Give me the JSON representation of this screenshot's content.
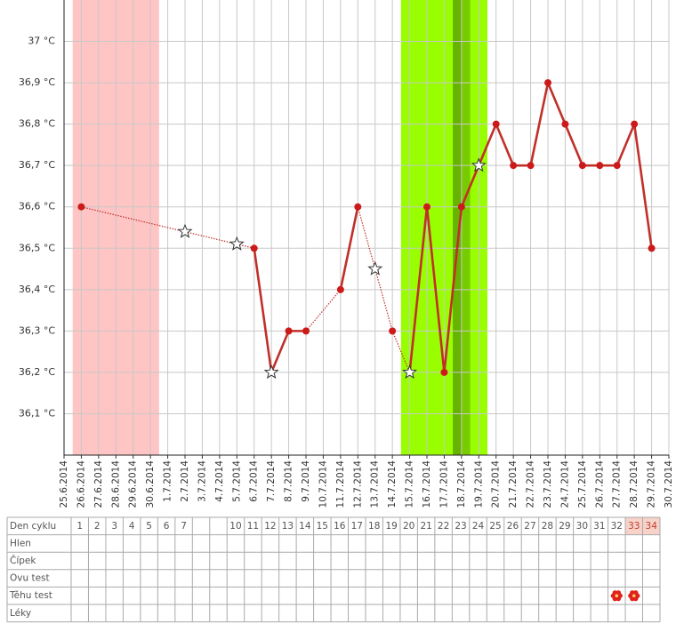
{
  "chart_data": {
    "type": "line",
    "categories": [
      "25.6.2014",
      "26.6.2014",
      "27.6.2014",
      "28.6.2014",
      "29.6.2014",
      "30.6.2014",
      "1.7.2014",
      "2.7.2014",
      "3.7.2014",
      "4.7.2014",
      "5.7.2014",
      "6.7.2014",
      "7.7.2014",
      "8.7.2014",
      "9.7.2014",
      "10.7.2014",
      "11.7.2014",
      "12.7.2014",
      "13.7.2014",
      "14.7.2014",
      "15.7.2014",
      "16.7.2014",
      "17.7.2014",
      "18.7.2014",
      "19.7.2014",
      "20.7.2014",
      "21.7.2014",
      "22.7.2014",
      "23.7.2014",
      "24.7.2014",
      "25.7.2014",
      "26.7.2014",
      "27.7.2014",
      "28.7.2014",
      "29.7.2014",
      "30.7.2014"
    ],
    "values": [
      null,
      36.6,
      null,
      null,
      null,
      null,
      null,
      36.54,
      null,
      null,
      36.51,
      36.5,
      36.2,
      36.3,
      36.3,
      null,
      36.4,
      36.6,
      36.45,
      36.3,
      36.2,
      36.6,
      36.2,
      36.6,
      36.7,
      36.8,
      36.7,
      36.7,
      36.9,
      36.8,
      36.7,
      36.7,
      36.7,
      36.8,
      36.5,
      null
    ],
    "markers": [
      "dot",
      "dot",
      "dot",
      "dot",
      "dot",
      "dot",
      "dot",
      "star",
      "dot",
      "dot",
      "star",
      "dot",
      "star",
      "dot",
      "dot",
      "dot",
      "dot",
      "dot",
      "star",
      "dot",
      "star",
      "dot",
      "dot",
      "dot",
      "star",
      "dot",
      "dot",
      "dot",
      "dot",
      "dot",
      "dot",
      "dot",
      "dot",
      "dot",
      "dot",
      "dot"
    ],
    "color": "#c0302a",
    "point_color": "#cc1a1a",
    "bands": [
      {
        "from": "26.6.2014",
        "to": "30.6.2014",
        "color": "#ffc4c4"
      },
      {
        "from": "15.7.2014",
        "to": "19.7.2014",
        "color": "#99ff00"
      },
      {
        "from": "18.7.2014",
        "to": "18.7.2014",
        "color": "#77cc00"
      },
      {
        "from": "18.7.2014",
        "to": "18.7.2014",
        "color": "#66b300",
        "half": true
      }
    ],
    "ylim": [
      36.0,
      37.1
    ],
    "yticks": [
      {
        "value": 36.1,
        "label": "36,1 °C"
      },
      {
        "value": 36.2,
        "label": "36,2 °C"
      },
      {
        "value": 36.3,
        "label": "36,3 °C"
      },
      {
        "value": 36.4,
        "label": "36,4 °C"
      },
      {
        "value": 36.5,
        "label": "36,5 °C"
      },
      {
        "value": 36.6,
        "label": "36,6 °C"
      },
      {
        "value": 36.7,
        "label": "36,7 °C"
      },
      {
        "value": 36.8,
        "label": "36,8 °C"
      },
      {
        "value": 36.9,
        "label": "36,9 °C"
      },
      {
        "value": 37.0,
        "label": "37 °C"
      }
    ],
    "grid": true
  },
  "table": {
    "header_label": "Den cyklu",
    "days": [
      1,
      2,
      3,
      4,
      5,
      6,
      7,
      10,
      11,
      12,
      13,
      14,
      15,
      16,
      17,
      18,
      19,
      20,
      21,
      22,
      23,
      24,
      25,
      26,
      27,
      28,
      29,
      30,
      31,
      32,
      33,
      34
    ],
    "highlight": [
      33,
      34
    ],
    "rows": [
      {
        "label": "Hlen",
        "marked": []
      },
      {
        "label": "Čípek",
        "marked": []
      },
      {
        "label": "Ovu test",
        "marked": []
      },
      {
        "label": "Těhu test",
        "marked": [
          32,
          33
        ]
      },
      {
        "label": "Léky",
        "marked": []
      }
    ]
  }
}
